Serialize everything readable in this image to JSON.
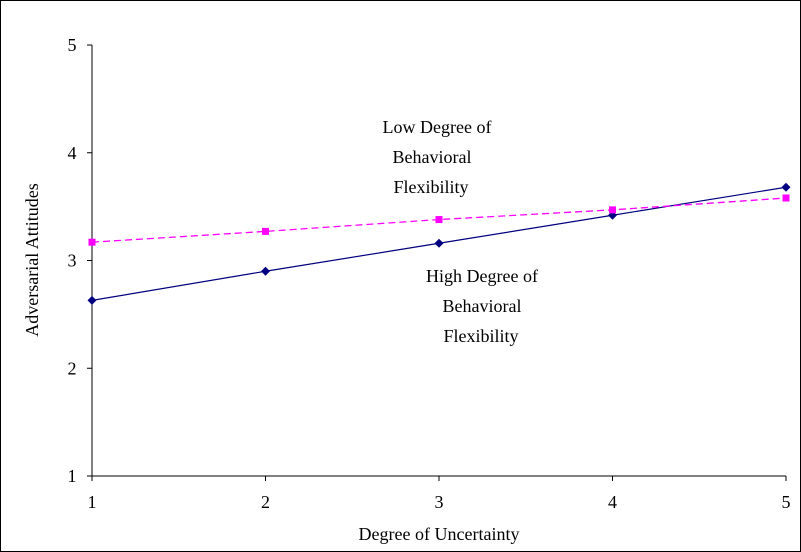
{
  "chart_data": {
    "type": "line",
    "xlabel": "Degree of Uncertainty",
    "ylabel": "Adversarial Attitudes",
    "xlim": [
      1,
      5
    ],
    "ylim": [
      1,
      5
    ],
    "x_ticks": [
      "1",
      "2",
      "3",
      "4",
      "5"
    ],
    "y_ticks": [
      "1",
      "2",
      "3",
      "4",
      "5"
    ],
    "grid": false,
    "legend": "none",
    "x": [
      1,
      2,
      3,
      4,
      5
    ],
    "series": [
      {
        "values": [
          2.63,
          2.9,
          3.16,
          3.42,
          3.68
        ],
        "color": "#000080",
        "style": "solid",
        "marker": "diamond"
      },
      {
        "values": [
          3.17,
          3.27,
          3.38,
          3.47,
          3.58
        ],
        "color": "#ff00ff",
        "style": "dashed",
        "marker": "square"
      }
    ],
    "annotations": [
      {
        "lines": [
          "Low Degree of",
          "Behavioral",
          "Flexibility"
        ]
      },
      {
        "lines": [
          "High Degree of",
          "Behavioral",
          "Flexibility"
        ]
      }
    ]
  }
}
